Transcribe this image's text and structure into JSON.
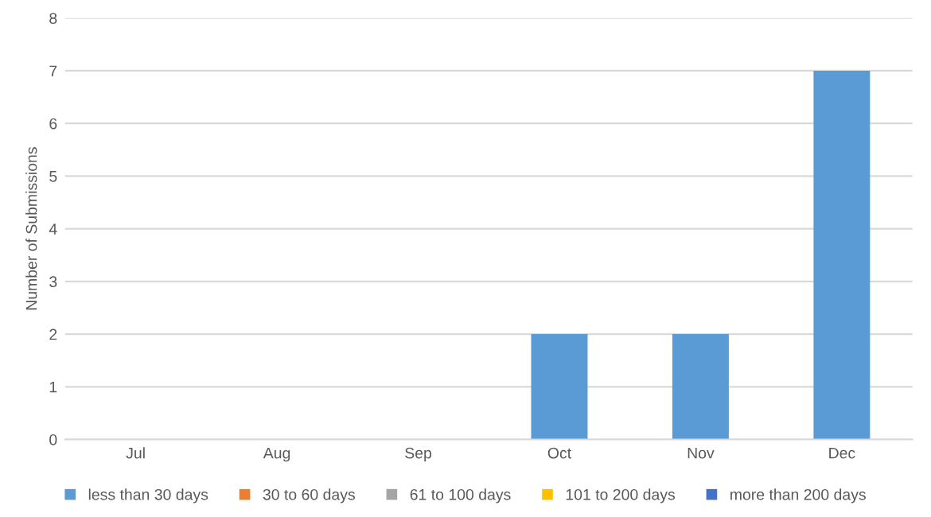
{
  "chart_data": {
    "type": "bar",
    "stacked": true,
    "ylabel": "Number of Submissions",
    "categories": [
      "Jul",
      "Aug",
      "Sep",
      "Oct",
      "Nov",
      "Dec"
    ],
    "series": [
      {
        "name": "less than 30 days",
        "color": "#5b9bd5",
        "values": [
          0,
          0,
          0,
          2,
          2,
          7
        ]
      },
      {
        "name": "30 to 60 days",
        "color": "#ed7d31",
        "values": [
          0,
          0,
          0,
          0,
          0,
          0
        ]
      },
      {
        "name": "61 to 100 days",
        "color": "#a5a5a5",
        "values": [
          0,
          0,
          0,
          0,
          0,
          0
        ]
      },
      {
        "name": "101 to 200 days",
        "color": "#ffc000",
        "values": [
          0,
          0,
          0,
          0,
          0,
          0
        ]
      },
      {
        "name": "more than 200 days",
        "color": "#4472c4",
        "values": [
          0,
          0,
          0,
          0,
          0,
          0
        ]
      }
    ],
    "ylim": [
      0,
      8
    ],
    "yticks": [
      0,
      1,
      2,
      3,
      4,
      5,
      6,
      7,
      8
    ],
    "grid": "y",
    "legend": "bottom"
  }
}
